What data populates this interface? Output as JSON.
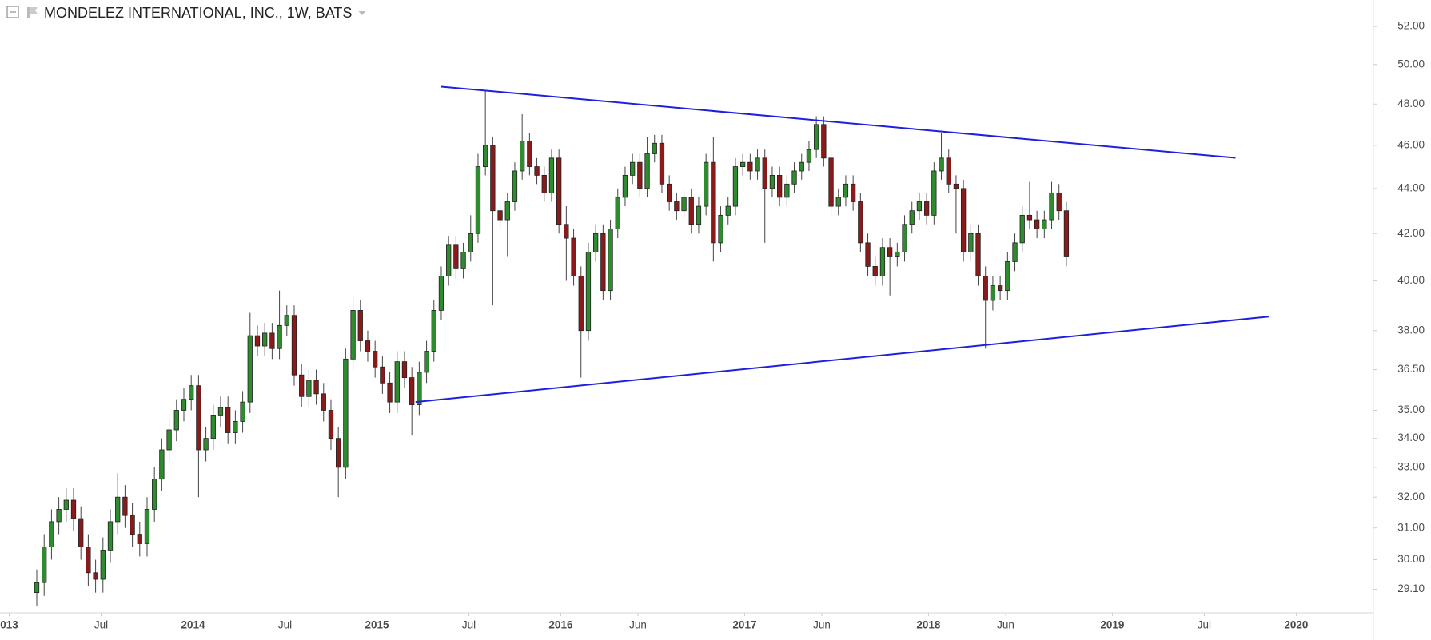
{
  "chart_data": {
    "type": "candlestick",
    "title": "MONDELEZ INTERNATIONAL, INC., 1W, BATS",
    "log_scale": true,
    "up_color": "#2e8b2e",
    "down_color": "#8b1a1a",
    "xlim": [
      2012.95,
      2020.42
    ],
    "xticks": [
      {
        "value": 2013,
        "label": "013"
      },
      {
        "value": 2013.5,
        "label": "Jul"
      },
      2014,
      {
        "value": 2014.5,
        "label": "Jul"
      },
      2015,
      {
        "value": 2015.5,
        "label": "Jul"
      },
      2016,
      {
        "value": 2016.42,
        "label": "Jun"
      },
      2017,
      {
        "value": 2017.42,
        "label": "Jun"
      },
      2018,
      {
        "value": 2018.42,
        "label": "Jun"
      },
      2019,
      {
        "value": 2019.5,
        "label": "Jul"
      },
      2020
    ],
    "ylim": [
      28.4,
      53.44
    ],
    "yticks": [
      {
        "value": 52,
        "label": "52.00"
      },
      {
        "value": 50,
        "label": "50.00"
      },
      {
        "value": 48,
        "label": "48.00"
      },
      {
        "value": 46,
        "label": "46.00"
      },
      {
        "value": 44,
        "label": "44.00"
      },
      {
        "value": 42,
        "label": "42.00"
      },
      {
        "value": 40,
        "label": "40.00"
      },
      {
        "value": 38,
        "label": "38.00"
      },
      {
        "value": 36.5,
        "label": "36.50"
      },
      {
        "value": 35,
        "label": "35.00"
      },
      {
        "value": 34,
        "label": "34.00"
      },
      {
        "value": 33,
        "label": "33.00"
      },
      {
        "value": 32,
        "label": "32.00"
      },
      {
        "value": 31,
        "label": "31.00"
      },
      {
        "value": 30,
        "label": "30.00"
      },
      {
        "value": 29.1,
        "label": "29.10"
      }
    ],
    "x": [
      2013.15,
      2013.19,
      2013.23,
      2013.27,
      2013.31,
      2013.35,
      2013.39,
      2013.43,
      2013.47,
      2013.51,
      2013.55,
      2013.59,
      2013.63,
      2013.67,
      2013.71,
      2013.75,
      2013.79,
      2013.83,
      2013.87,
      2013.91,
      2013.95,
      2013.99,
      2014.03,
      2014.07,
      2014.11,
      2014.15,
      2014.19,
      2014.23,
      2014.27,
      2014.31,
      2014.35,
      2014.39,
      2014.43,
      2014.47,
      2014.51,
      2014.55,
      2014.59,
      2014.63,
      2014.67,
      2014.71,
      2014.75,
      2014.79,
      2014.83,
      2014.87,
      2014.91,
      2014.95,
      2014.99,
      2015.03,
      2015.07,
      2015.11,
      2015.15,
      2015.19,
      2015.23,
      2015.27,
      2015.31,
      2015.35,
      2015.39,
      2015.43,
      2015.47,
      2015.51,
      2015.55,
      2015.59,
      2015.63,
      2015.67,
      2015.71,
      2015.75,
      2015.79,
      2015.83,
      2015.87,
      2015.91,
      2015.95,
      2015.99,
      2016.03,
      2016.07,
      2016.11,
      2016.15,
      2016.19,
      2016.23,
      2016.27,
      2016.31,
      2016.35,
      2016.39,
      2016.43,
      2016.47,
      2016.51,
      2016.55,
      2016.59,
      2016.63,
      2016.67,
      2016.71,
      2016.75,
      2016.79,
      2016.83,
      2016.87,
      2016.91,
      2016.95,
      2016.99,
      2017.03,
      2017.07,
      2017.11,
      2017.15,
      2017.19,
      2017.23,
      2017.27,
      2017.31,
      2017.35,
      2017.39,
      2017.43,
      2017.47,
      2017.51,
      2017.55,
      2017.59,
      2017.63,
      2017.67,
      2017.71,
      2017.75,
      2017.79,
      2017.83,
      2017.87,
      2017.91,
      2017.95,
      2017.99,
      2018.03,
      2018.07,
      2018.11,
      2018.15,
      2018.19,
      2018.23,
      2018.27,
      2018.31,
      2018.35,
      2018.39,
      2018.43,
      2018.47,
      2018.51,
      2018.55,
      2018.59,
      2018.63,
      2018.67,
      2018.71,
      2018.75
    ],
    "open": [
      29.0,
      29.3,
      30.4,
      31.2,
      31.6,
      31.9,
      31.3,
      30.4,
      29.6,
      29.4,
      30.3,
      31.2,
      32.0,
      31.4,
      30.8,
      30.5,
      31.6,
      32.6,
      33.6,
      34.3,
      35.0,
      35.4,
      35.9,
      33.6,
      34.0,
      34.8,
      35.1,
      34.2,
      34.6,
      35.3,
      37.8,
      37.4,
      37.9,
      37.3,
      38.2,
      38.6,
      36.3,
      35.5,
      36.1,
      35.6,
      35.0,
      34.0,
      33.0,
      36.9,
      38.8,
      37.6,
      37.2,
      36.6,
      36.0,
      35.3,
      36.8,
      36.2,
      35.2,
      36.4,
      37.2,
      38.8,
      40.2,
      41.5,
      40.5,
      41.2,
      42.0,
      45.0,
      46.0,
      43.0,
      42.6,
      43.4,
      44.8,
      46.2,
      45.0,
      44.6,
      43.8,
      45.4,
      42.4,
      41.8,
      40.2,
      38.0,
      41.2,
      42.0,
      39.6,
      42.2,
      43.6,
      44.6,
      45.2,
      44.0,
      45.6,
      46.1,
      44.2,
      43.4,
      43.0,
      43.6,
      42.4,
      43.2,
      45.2,
      41.6,
      42.8,
      43.2,
      45.0,
      45.2,
      44.8,
      45.4,
      44.0,
      44.6,
      43.6,
      44.2,
      44.8,
      45.2,
      45.8,
      47.0,
      45.4,
      43.2,
      43.6,
      44.2,
      43.4,
      41.6,
      40.6,
      40.2,
      41.4,
      41.0,
      41.2,
      42.4,
      43.0,
      43.4,
      42.8,
      44.8,
      45.4,
      44.2,
      44.0,
      41.2,
      42.0,
      40.2,
      39.2,
      39.8,
      39.6,
      40.8,
      41.6,
      42.8,
      42.6,
      42.2,
      42.6,
      43.8,
      43.0
    ],
    "high": [
      29.7,
      30.8,
      31.6,
      32.0,
      32.3,
      32.3,
      31.7,
      30.8,
      30.0,
      30.7,
      31.6,
      32.8,
      32.4,
      31.8,
      31.2,
      32.0,
      33.0,
      34.0,
      34.7,
      35.4,
      35.8,
      36.3,
      36.3,
      34.4,
      35.2,
      35.5,
      35.5,
      35.0,
      35.7,
      38.7,
      38.2,
      38.3,
      38.3,
      39.6,
      39.0,
      39.0,
      36.7,
      36.5,
      36.5,
      36.0,
      35.4,
      34.4,
      37.3,
      39.4,
      39.2,
      38.0,
      37.6,
      37.0,
      36.4,
      37.2,
      37.2,
      36.6,
      36.8,
      37.6,
      39.2,
      40.6,
      41.9,
      41.9,
      41.6,
      42.8,
      45.6,
      48.7,
      46.4,
      43.4,
      43.8,
      45.2,
      47.5,
      46.6,
      45.4,
      45.0,
      45.8,
      45.8,
      43.2,
      42.2,
      40.6,
      41.6,
      42.4,
      42.4,
      42.6,
      44.0,
      45.0,
      45.6,
      45.6,
      46.4,
      46.5,
      46.5,
      44.6,
      43.8,
      44.0,
      44.0,
      43.6,
      45.6,
      46.4,
      43.2,
      43.6,
      45.4,
      45.6,
      45.6,
      45.8,
      45.8,
      45.0,
      45.0,
      44.6,
      45.2,
      45.6,
      46.2,
      47.4,
      47.4,
      45.8,
      44.0,
      44.6,
      44.6,
      43.8,
      42.0,
      41.0,
      41.8,
      41.8,
      41.6,
      42.8,
      43.4,
      43.8,
      43.8,
      45.2,
      46.6,
      45.8,
      44.6,
      44.4,
      42.4,
      42.4,
      40.6,
      40.2,
      40.2,
      41.2,
      42.0,
      43.2,
      44.3,
      43.0,
      43.0,
      44.3,
      44.2,
      43.4
    ],
    "low": [
      28.6,
      28.9,
      30.0,
      30.8,
      31.2,
      30.9,
      30.0,
      29.2,
      29.0,
      29.0,
      29.9,
      30.8,
      31.0,
      30.4,
      30.1,
      30.1,
      31.2,
      32.2,
      33.2,
      33.9,
      34.6,
      35.0,
      32.0,
      33.2,
      33.6,
      34.4,
      33.8,
      33.8,
      34.2,
      34.9,
      37.0,
      37.0,
      36.9,
      36.9,
      37.8,
      35.9,
      35.1,
      35.1,
      35.2,
      34.6,
      33.6,
      32.0,
      32.6,
      36.5,
      37.2,
      36.8,
      36.2,
      35.6,
      34.9,
      34.9,
      35.8,
      34.1,
      34.8,
      36.0,
      36.8,
      38.4,
      39.8,
      40.1,
      40.1,
      40.8,
      41.6,
      44.6,
      39.0,
      42.2,
      41.0,
      43.0,
      44.4,
      44.6,
      44.2,
      43.4,
      43.4,
      42.0,
      40.0,
      39.8,
      36.2,
      37.6,
      40.8,
      39.2,
      39.2,
      41.8,
      43.2,
      44.2,
      43.6,
      43.6,
      45.2,
      43.8,
      43.0,
      42.6,
      42.6,
      42.0,
      42.0,
      42.8,
      40.8,
      41.2,
      42.4,
      42.8,
      44.6,
      44.4,
      44.4,
      41.6,
      43.6,
      43.2,
      43.2,
      43.8,
      44.4,
      44.8,
      45.4,
      45.0,
      42.8,
      42.8,
      43.2,
      43.0,
      41.2,
      40.2,
      39.8,
      39.8,
      39.4,
      40.6,
      40.8,
      42.0,
      42.6,
      42.4,
      42.4,
      44.4,
      43.8,
      42.0,
      40.8,
      40.8,
      39.8,
      37.3,
      38.8,
      39.2,
      39.2,
      40.4,
      41.2,
      42.2,
      41.8,
      41.8,
      42.2,
      42.6,
      40.6
    ],
    "close": [
      29.3,
      30.4,
      31.2,
      31.6,
      31.9,
      31.3,
      30.4,
      29.6,
      29.4,
      30.3,
      31.2,
      32.0,
      31.4,
      30.8,
      30.5,
      31.6,
      32.6,
      33.6,
      34.3,
      35.0,
      35.4,
      35.9,
      33.6,
      34.0,
      34.8,
      35.1,
      34.2,
      34.6,
      35.3,
      37.8,
      37.4,
      37.9,
      37.3,
      38.2,
      38.6,
      36.3,
      35.5,
      36.1,
      35.6,
      35.0,
      34.0,
      33.0,
      36.9,
      38.8,
      37.6,
      37.2,
      36.6,
      36.0,
      35.3,
      36.8,
      36.2,
      35.2,
      36.4,
      37.2,
      38.8,
      40.2,
      41.5,
      40.5,
      41.2,
      42.0,
      45.0,
      46.0,
      43.0,
      42.6,
      43.4,
      44.8,
      46.2,
      45.0,
      44.6,
      43.8,
      45.4,
      42.4,
      41.8,
      40.2,
      38.0,
      41.2,
      42.0,
      39.6,
      42.2,
      43.6,
      44.6,
      45.2,
      44.0,
      45.6,
      46.1,
      44.2,
      43.4,
      43.0,
      43.6,
      42.4,
      43.2,
      45.2,
      41.6,
      42.8,
      43.2,
      45.0,
      45.2,
      44.8,
      45.4,
      44.0,
      44.6,
      43.6,
      44.2,
      44.8,
      45.2,
      45.8,
      47.0,
      45.4,
      43.2,
      43.6,
      44.2,
      43.4,
      41.6,
      40.6,
      40.2,
      41.4,
      41.0,
      41.2,
      42.4,
      43.0,
      43.4,
      42.8,
      44.8,
      45.4,
      44.2,
      44.0,
      41.2,
      42.0,
      40.2,
      39.2,
      39.8,
      39.6,
      40.8,
      41.6,
      42.8,
      42.6,
      42.2,
      42.6,
      43.8,
      43.0,
      41.0
    ],
    "trend_lines": [
      {
        "color": "#1f1fe0",
        "x": [
          2015.35,
          2019.67
        ],
        "y": [
          48.87,
          45.41
        ]
      },
      {
        "color": "#1f1fe0",
        "x": [
          2015.21,
          2019.85
        ],
        "y": [
          35.3,
          38.55
        ]
      }
    ]
  }
}
